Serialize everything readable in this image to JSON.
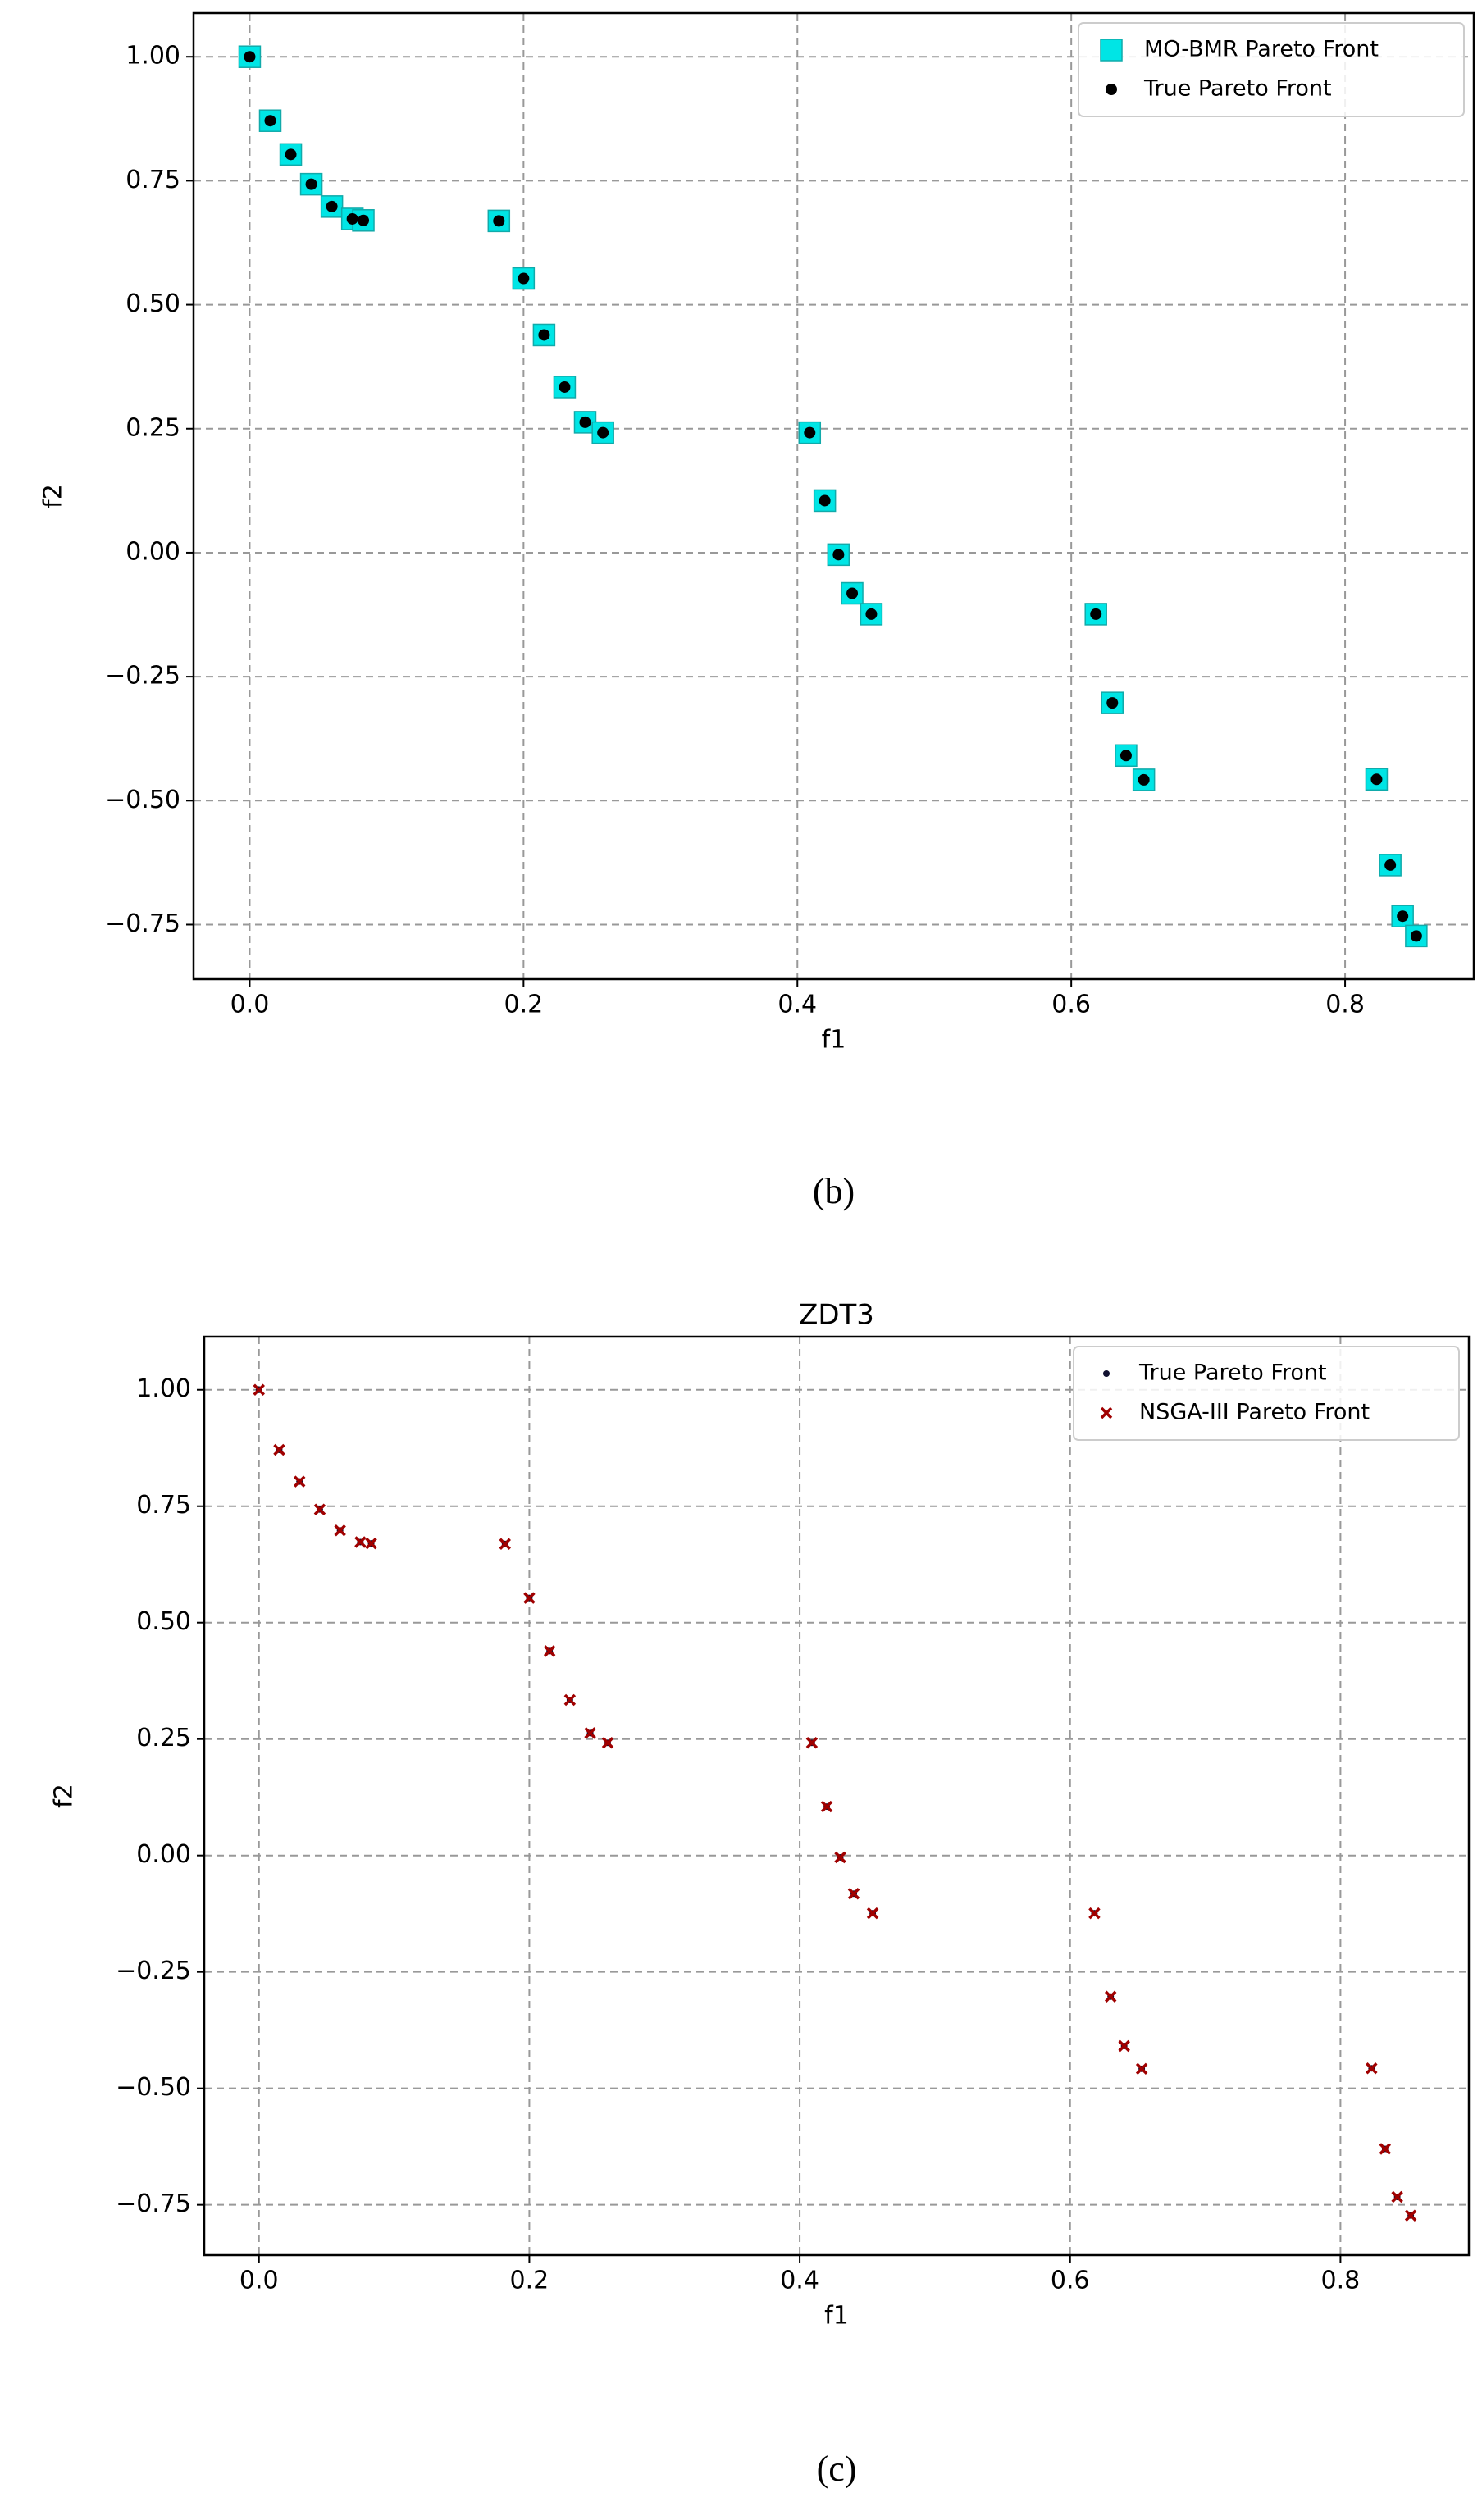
{
  "chart_data": [
    {
      "type": "scatter",
      "xlabel": "f1",
      "ylabel": "f2",
      "caption": "(b)",
      "grid": true,
      "legend": "upper right",
      "xlim": [
        -0.041,
        0.894
      ],
      "ylim": [
        -0.86,
        1.088
      ],
      "xticks": [
        {
          "value": 0,
          "label": "0.0"
        },
        {
          "value": 0.2,
          "label": "0.2"
        },
        {
          "value": 0.4,
          "label": "0.4"
        },
        {
          "value": 0.6,
          "label": "0.6"
        },
        {
          "value": 0.8,
          "label": "0.8"
        }
      ],
      "yticks": [
        {
          "value": -0.75,
          "label": "−0.75"
        },
        {
          "value": -0.5,
          "label": "−0.50"
        },
        {
          "value": -0.25,
          "label": "−0.25"
        },
        {
          "value": 0,
          "label": "0.00"
        },
        {
          "value": 0.25,
          "label": "0.25"
        },
        {
          "value": 0.5,
          "label": "0.50"
        },
        {
          "value": 0.75,
          "label": "0.75"
        },
        {
          "value": 1,
          "label": "1.00"
        }
      ],
      "series": [
        {
          "name": "MO-BMR Pareto Front",
          "color": "#00e5e5",
          "marker": "square",
          "x": [
            0,
            0.015,
            0.03,
            0.045,
            0.06,
            0.075,
            0.083,
            0.182,
            0.2,
            0.215,
            0.23,
            0.245,
            0.258,
            0.409,
            0.42,
            0.43,
            0.44,
            0.454,
            0.618,
            0.63,
            0.64,
            0.653,
            0.823,
            0.833,
            0.842,
            0.852
          ],
          "values": [
            1,
            0.871,
            0.803,
            0.743,
            0.698,
            0.673,
            0.67,
            0.669,
            0.553,
            0.439,
            0.334,
            0.263,
            0.242,
            0.242,
            0.105,
            -0.004,
            -0.082,
            -0.124,
            -0.124,
            -0.303,
            -0.409,
            -0.458,
            -0.457,
            -0.63,
            -0.733,
            -0.773
          ]
        },
        {
          "name": "True Pareto Front",
          "color": "#000000",
          "marker": "circle",
          "x": [
            0,
            0.015,
            0.03,
            0.045,
            0.06,
            0.075,
            0.083,
            0.182,
            0.2,
            0.215,
            0.23,
            0.245,
            0.258,
            0.409,
            0.42,
            0.43,
            0.44,
            0.454,
            0.618,
            0.63,
            0.64,
            0.653,
            0.823,
            0.833,
            0.842,
            0.852
          ],
          "values": [
            1,
            0.871,
            0.803,
            0.743,
            0.698,
            0.673,
            0.67,
            0.669,
            0.553,
            0.439,
            0.334,
            0.263,
            0.242,
            0.242,
            0.105,
            -0.004,
            -0.082,
            -0.124,
            -0.124,
            -0.303,
            -0.409,
            -0.458,
            -0.457,
            -0.63,
            -0.733,
            -0.773
          ]
        }
      ]
    },
    {
      "type": "scatter",
      "title": "ZDT3",
      "xlabel": "f1",
      "ylabel": "f2",
      "caption": "(c)",
      "grid": true,
      "legend": "upper right",
      "xlim": [
        -0.0405,
        0.895
      ],
      "ylim": [
        -0.858,
        1.114
      ],
      "xticks": [
        {
          "value": 0,
          "label": "0.0"
        },
        {
          "value": 0.2,
          "label": "0.2"
        },
        {
          "value": 0.4,
          "label": "0.4"
        },
        {
          "value": 0.6,
          "label": "0.6"
        },
        {
          "value": 0.8,
          "label": "0.8"
        }
      ],
      "yticks": [
        {
          "value": -0.75,
          "label": "−0.75"
        },
        {
          "value": -0.5,
          "label": "−0.50"
        },
        {
          "value": -0.25,
          "label": "−0.25"
        },
        {
          "value": 0,
          "label": "0.00"
        },
        {
          "value": 0.25,
          "label": "0.25"
        },
        {
          "value": 0.5,
          "label": "0.50"
        },
        {
          "value": 0.75,
          "label": "0.75"
        },
        {
          "value": 1,
          "label": "1.00"
        }
      ],
      "series": [
        {
          "name": "True Pareto Front",
          "color": "#101030",
          "marker": "dot",
          "x": [
            0,
            0.015,
            0.03,
            0.045,
            0.06,
            0.075,
            0.083,
            0.182,
            0.2,
            0.215,
            0.23,
            0.245,
            0.258,
            0.409,
            0.42,
            0.43,
            0.44,
            0.454,
            0.618,
            0.63,
            0.64,
            0.653,
            0.823,
            0.833,
            0.842,
            0.852
          ],
          "values": [
            1,
            0.871,
            0.803,
            0.743,
            0.698,
            0.673,
            0.67,
            0.669,
            0.553,
            0.439,
            0.334,
            0.263,
            0.242,
            0.242,
            0.105,
            -0.004,
            -0.082,
            -0.124,
            -0.124,
            -0.303,
            -0.409,
            -0.458,
            -0.457,
            -0.63,
            -0.733,
            -0.773
          ]
        },
        {
          "name": "NSGA-III Pareto Front",
          "color": "#a00000",
          "marker": "x",
          "x": [
            0,
            0.015,
            0.03,
            0.045,
            0.06,
            0.075,
            0.083,
            0.182,
            0.2,
            0.215,
            0.23,
            0.245,
            0.258,
            0.409,
            0.42,
            0.43,
            0.44,
            0.454,
            0.618,
            0.63,
            0.64,
            0.653,
            0.823,
            0.833,
            0.842,
            0.852
          ],
          "values": [
            1,
            0.871,
            0.803,
            0.743,
            0.698,
            0.673,
            0.67,
            0.669,
            0.553,
            0.439,
            0.334,
            0.263,
            0.242,
            0.242,
            0.105,
            -0.004,
            -0.082,
            -0.124,
            -0.124,
            -0.303,
            -0.409,
            -0.458,
            -0.457,
            -0.63,
            -0.733,
            -0.773
          ]
        }
      ]
    }
  ]
}
